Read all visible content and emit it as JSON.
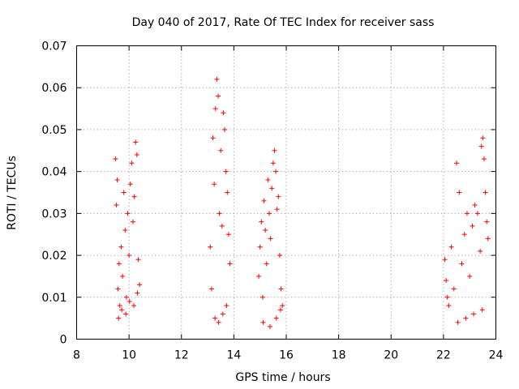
{
  "chart_data": {
    "type": "scatter",
    "title": "Day 040 of 2017, Rate Of TEC Index for receiver sass",
    "xlabel": "GPS time / hours",
    "ylabel": "ROTI / TECUs",
    "xlim": [
      8,
      24
    ],
    "ylim": [
      0,
      0.07
    ],
    "xticks": [
      "8",
      "10",
      "12",
      "14",
      "16",
      "18",
      "20",
      "22",
      "24"
    ],
    "yticks": [
      "0",
      "0.01",
      "0.02",
      "0.03",
      "0.04",
      "0.05",
      "0.06",
      "0.07"
    ],
    "grid": true,
    "marker": "+",
    "marker_color": "#ff0000",
    "series": [
      {
        "name": "ROTI",
        "x": [
          9.48,
          9.52,
          9.55,
          9.58,
          9.62,
          9.65,
          9.7,
          9.75,
          9.8,
          9.85,
          9.9,
          9.95,
          10.0,
          10.05,
          10.1,
          10.15,
          10.2,
          10.25,
          10.3,
          10.35,
          10.4,
          9.6,
          9.72,
          9.88,
          10.02,
          10.18,
          10.32,
          13.1,
          13.15,
          13.2,
          13.25,
          13.3,
          13.35,
          13.4,
          13.45,
          13.5,
          13.55,
          13.6,
          13.65,
          13.7,
          13.75,
          13.8,
          13.85,
          13.28,
          13.42,
          13.58,
          13.72,
          14.95,
          15.0,
          15.05,
          15.1,
          15.15,
          15.2,
          15.25,
          15.3,
          15.35,
          15.4,
          15.45,
          15.5,
          15.55,
          15.6,
          15.65,
          15.7,
          15.75,
          15.8,
          15.85,
          15.12,
          15.38,
          15.62,
          15.78,
          22.05,
          22.1,
          22.15,
          22.2,
          22.3,
          22.4,
          22.5,
          22.6,
          22.7,
          22.8,
          22.9,
          23.0,
          23.1,
          23.2,
          23.3,
          23.4,
          23.45,
          23.5,
          23.55,
          23.6,
          23.65,
          23.7,
          22.55,
          22.85,
          23.15,
          23.48
        ],
        "y": [
          0.043,
          0.032,
          0.038,
          0.012,
          0.018,
          0.008,
          0.022,
          0.015,
          0.035,
          0.026,
          0.01,
          0.03,
          0.02,
          0.037,
          0.042,
          0.028,
          0.034,
          0.047,
          0.044,
          0.019,
          0.013,
          0.005,
          0.007,
          0.006,
          0.009,
          0.008,
          0.011,
          0.022,
          0.012,
          0.048,
          0.037,
          0.055,
          0.062,
          0.058,
          0.03,
          0.045,
          0.027,
          0.054,
          0.05,
          0.04,
          0.035,
          0.025,
          0.018,
          0.005,
          0.004,
          0.006,
          0.008,
          0.015,
          0.022,
          0.028,
          0.01,
          0.033,
          0.026,
          0.018,
          0.038,
          0.03,
          0.024,
          0.036,
          0.042,
          0.045,
          0.04,
          0.031,
          0.034,
          0.02,
          0.012,
          0.008,
          0.004,
          0.003,
          0.005,
          0.007,
          0.019,
          0.014,
          0.01,
          0.008,
          0.022,
          0.012,
          0.042,
          0.035,
          0.018,
          0.025,
          0.03,
          0.015,
          0.027,
          0.032,
          0.03,
          0.021,
          0.046,
          0.048,
          0.043,
          0.035,
          0.028,
          0.024,
          0.004,
          0.005,
          0.006,
          0.007
        ]
      }
    ]
  }
}
